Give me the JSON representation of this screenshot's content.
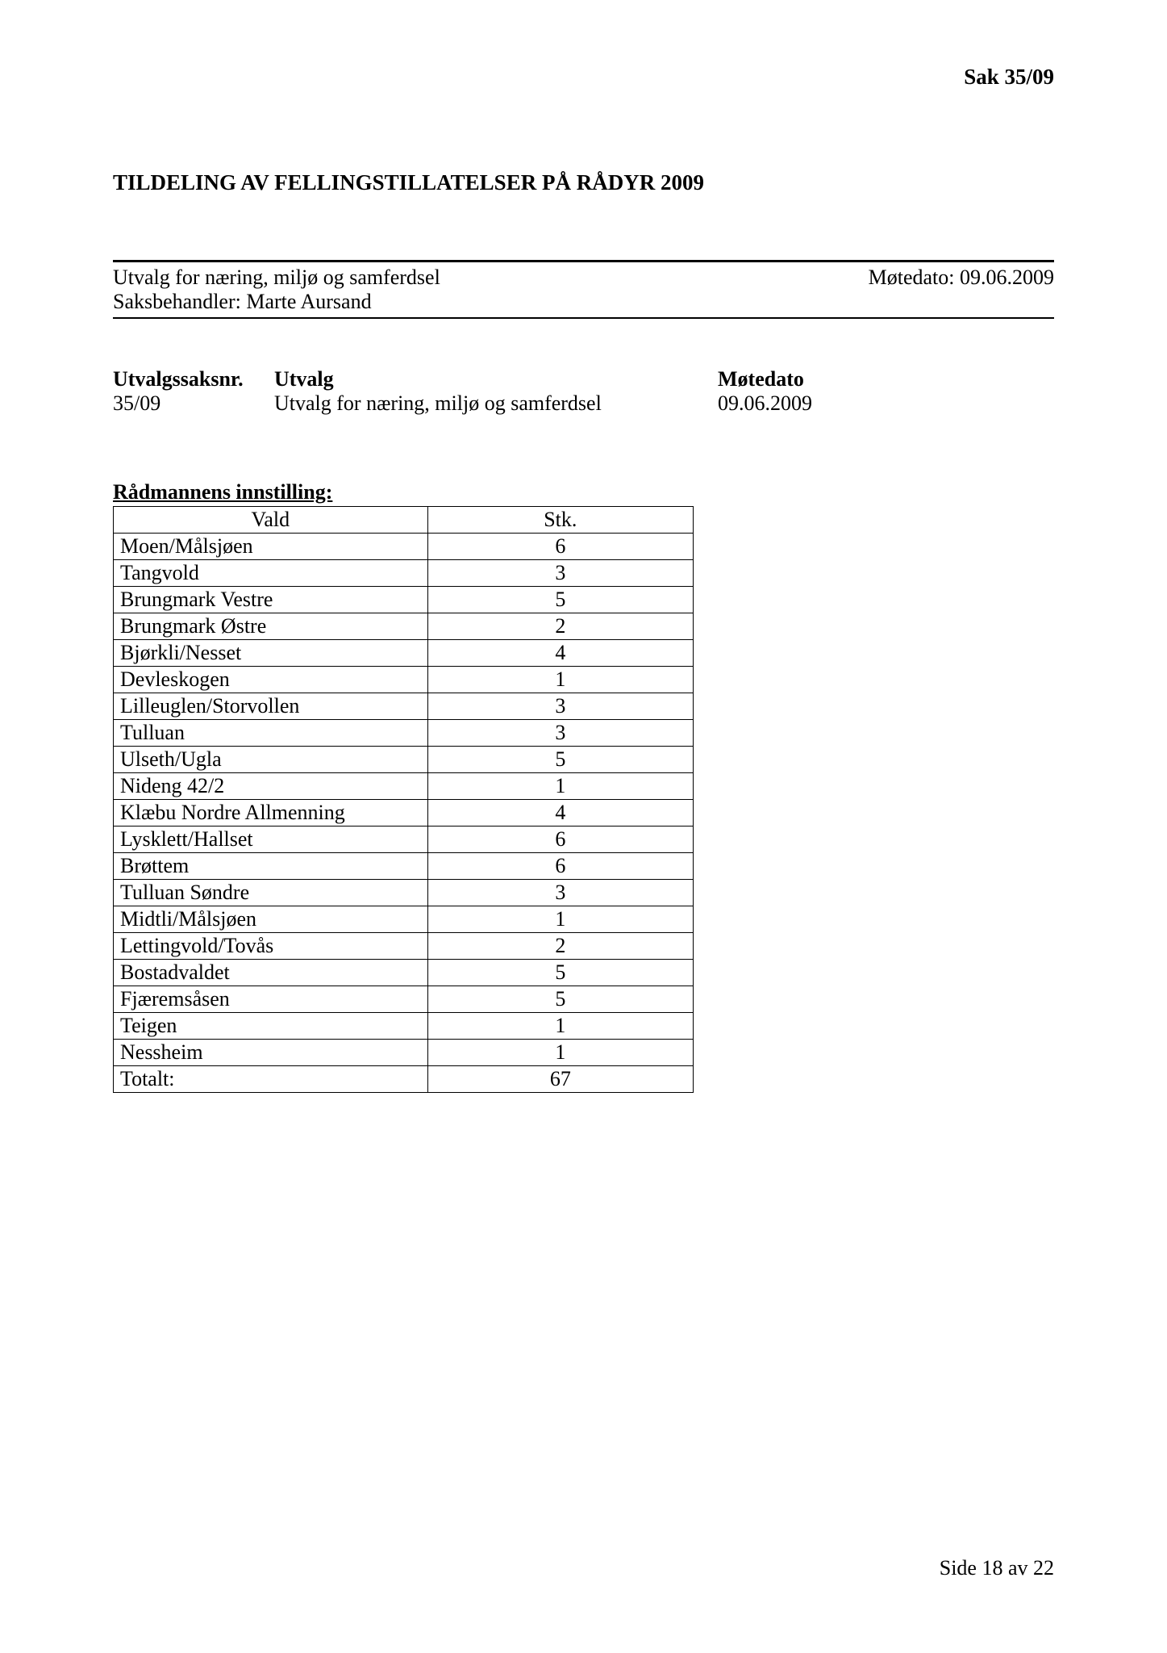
{
  "header": {
    "case_ref": "Sak  35/09"
  },
  "title": "TILDELING AV FELLINGSTILLATELSER PÅ RÅDYR 2009",
  "info": {
    "committee": "Utvalg for næring, miljø og samferdsel",
    "meeting_label": "Møtedato: 09.06.2009",
    "caseworker": "Saksbehandler: Marte Aursand"
  },
  "utvalg_table": {
    "headers": {
      "saksnr": "Utvalgssaksnr.",
      "utvalg": "Utvalg",
      "motedato": "Møtedato"
    },
    "row": {
      "saksnr": "35/09",
      "utvalg": "Utvalg for næring, miljø og samferdsel",
      "motedato": "09.06.2009"
    }
  },
  "section_title": "Rådmannens innstilling:",
  "allocation_table": {
    "columns": [
      "Vald",
      "Stk."
    ],
    "rows": [
      [
        "Moen/Målsjøen",
        "6"
      ],
      [
        "Tangvold",
        "3"
      ],
      [
        "Brungmark Vestre",
        "5"
      ],
      [
        "Brungmark Østre",
        "2"
      ],
      [
        "Bjørkli/Nesset",
        "4"
      ],
      [
        "Devleskogen",
        "1"
      ],
      [
        "Lilleuglen/Storvollen",
        "3"
      ],
      [
        "Tulluan",
        "3"
      ],
      [
        "Ulseth/Ugla",
        "5"
      ],
      [
        "Nideng 42/2",
        "1"
      ],
      [
        "Klæbu Nordre Allmenning",
        "4"
      ],
      [
        "Lysklett/Hallset",
        "6"
      ],
      [
        "Brøttem",
        "6"
      ],
      [
        "Tulluan Søndre",
        "3"
      ],
      [
        "Midtli/Målsjøen",
        "1"
      ],
      [
        "Lettingvold/Tovås",
        "2"
      ],
      [
        "Bostadvaldet",
        "5"
      ],
      [
        "Fjæremsåsen",
        "5"
      ],
      [
        "Teigen",
        "1"
      ],
      [
        "Nessheim",
        "1"
      ],
      [
        "Totalt:",
        "67"
      ]
    ],
    "styling": {
      "border_color": "#000000",
      "background_color": "#ffffff",
      "font_size": 26,
      "col_vald_width": 390,
      "col_stk_width": 330,
      "col_vald_align": "left",
      "col_stk_align": "center"
    }
  },
  "footer": {
    "page_info": "Side 18 av 22"
  }
}
